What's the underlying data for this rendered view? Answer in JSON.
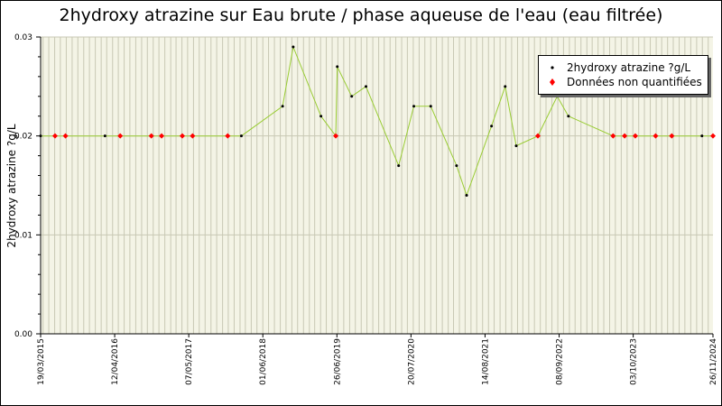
{
  "chart_data": {
    "type": "line",
    "title": "2hydroxy atrazine sur Eau brute / phase aqueuse de l'eau (eau filtrée)",
    "ylabel": "2hydroxy atrazine ?g/L",
    "xlabel": "",
    "ylim": [
      0,
      0.03
    ],
    "xlim": [
      "2015-03-19",
      "2024-11-26"
    ],
    "y_ticks": [
      "0.00",
      "0.01",
      "0.02",
      "0.03"
    ],
    "x_ticks": [
      {
        "date": "2015-03-19",
        "label": "19/03/2015"
      },
      {
        "date": "2016-04-12",
        "label": "12/04/2016"
      },
      {
        "date": "2017-05-07",
        "label": "07/05/2017"
      },
      {
        "date": "2018-06-01",
        "label": "01/06/2018"
      },
      {
        "date": "2019-06-26",
        "label": "26/06/2019"
      },
      {
        "date": "2020-07-20",
        "label": "20/07/2020"
      },
      {
        "date": "2021-08-14",
        "label": "14/08/2021"
      },
      {
        "date": "2022-09-08",
        "label": "08/09/2022"
      },
      {
        "date": "2023-10-03",
        "label": "03/10/2023"
      },
      {
        "date": "2024-11-26",
        "label": "26/11/2024"
      }
    ],
    "grid": true,
    "legend_position": "top-right",
    "series": [
      {
        "name": "2hydroxy atrazine ?g/L",
        "color": "#99cc33",
        "marker_color": "#000000",
        "points": [
          {
            "x": "2015-03-19",
            "y": 0.02
          },
          {
            "x": "2015-06-03",
            "y": 0.02
          },
          {
            "x": "2015-07-28",
            "y": 0.02
          },
          {
            "x": "2016-02-21",
            "y": 0.02
          },
          {
            "x": "2016-05-11",
            "y": 0.02
          },
          {
            "x": "2016-10-22",
            "y": 0.02
          },
          {
            "x": "2016-12-15",
            "y": 0.02
          },
          {
            "x": "2017-04-03",
            "y": 0.02
          },
          {
            "x": "2017-05-27",
            "y": 0.02
          },
          {
            "x": "2017-11-28",
            "y": 0.02
          },
          {
            "x": "2018-02-08",
            "y": 0.02
          },
          {
            "x": "2018-09-13",
            "y": 0.023
          },
          {
            "x": "2018-11-08",
            "y": 0.029
          },
          {
            "x": "2019-04-03",
            "y": 0.022
          },
          {
            "x": "2019-06-20",
            "y": 0.02
          },
          {
            "x": "2019-06-28",
            "y": 0.027
          },
          {
            "x": "2019-09-12",
            "y": 0.024
          },
          {
            "x": "2019-11-26",
            "y": 0.025
          },
          {
            "x": "2020-05-16",
            "y": 0.017
          },
          {
            "x": "2020-08-04",
            "y": 0.023
          },
          {
            "x": "2020-11-01",
            "y": 0.023
          },
          {
            "x": "2021-03-17",
            "y": 0.017
          },
          {
            "x": "2021-05-09",
            "y": 0.014
          },
          {
            "x": "2021-09-17",
            "y": 0.021
          },
          {
            "x": "2021-11-28",
            "y": 0.025
          },
          {
            "x": "2022-01-25",
            "y": 0.019
          },
          {
            "x": "2022-05-19",
            "y": 0.02
          },
          {
            "x": "2022-08-29",
            "y": 0.024
          },
          {
            "x": "2022-10-27",
            "y": 0.022
          },
          {
            "x": "2023-06-19",
            "y": 0.02
          },
          {
            "x": "2023-08-19",
            "y": 0.02
          },
          {
            "x": "2023-10-14",
            "y": 0.02
          },
          {
            "x": "2024-01-29",
            "y": 0.02
          },
          {
            "x": "2024-04-23",
            "y": 0.02
          },
          {
            "x": "2024-09-29",
            "y": 0.02
          },
          {
            "x": "2024-11-26",
            "y": 0.02
          }
        ]
      },
      {
        "name": "Données non quantifiées",
        "color": "#ff0000",
        "points": [
          {
            "x": "2015-06-03",
            "y": 0.02
          },
          {
            "x": "2015-07-28",
            "y": 0.02
          },
          {
            "x": "2016-05-11",
            "y": 0.02
          },
          {
            "x": "2016-10-22",
            "y": 0.02
          },
          {
            "x": "2016-12-15",
            "y": 0.02
          },
          {
            "x": "2017-04-03",
            "y": 0.02
          },
          {
            "x": "2017-05-27",
            "y": 0.02
          },
          {
            "x": "2017-11-28",
            "y": 0.02
          },
          {
            "x": "2019-06-20",
            "y": 0.02
          },
          {
            "x": "2022-05-19",
            "y": 0.02
          },
          {
            "x": "2023-06-19",
            "y": 0.02
          },
          {
            "x": "2023-08-19",
            "y": 0.02
          },
          {
            "x": "2023-10-14",
            "y": 0.02
          },
          {
            "x": "2024-01-29",
            "y": 0.02
          },
          {
            "x": "2024-04-23",
            "y": 0.02
          },
          {
            "x": "2024-11-26",
            "y": 0.02
          }
        ]
      }
    ]
  }
}
